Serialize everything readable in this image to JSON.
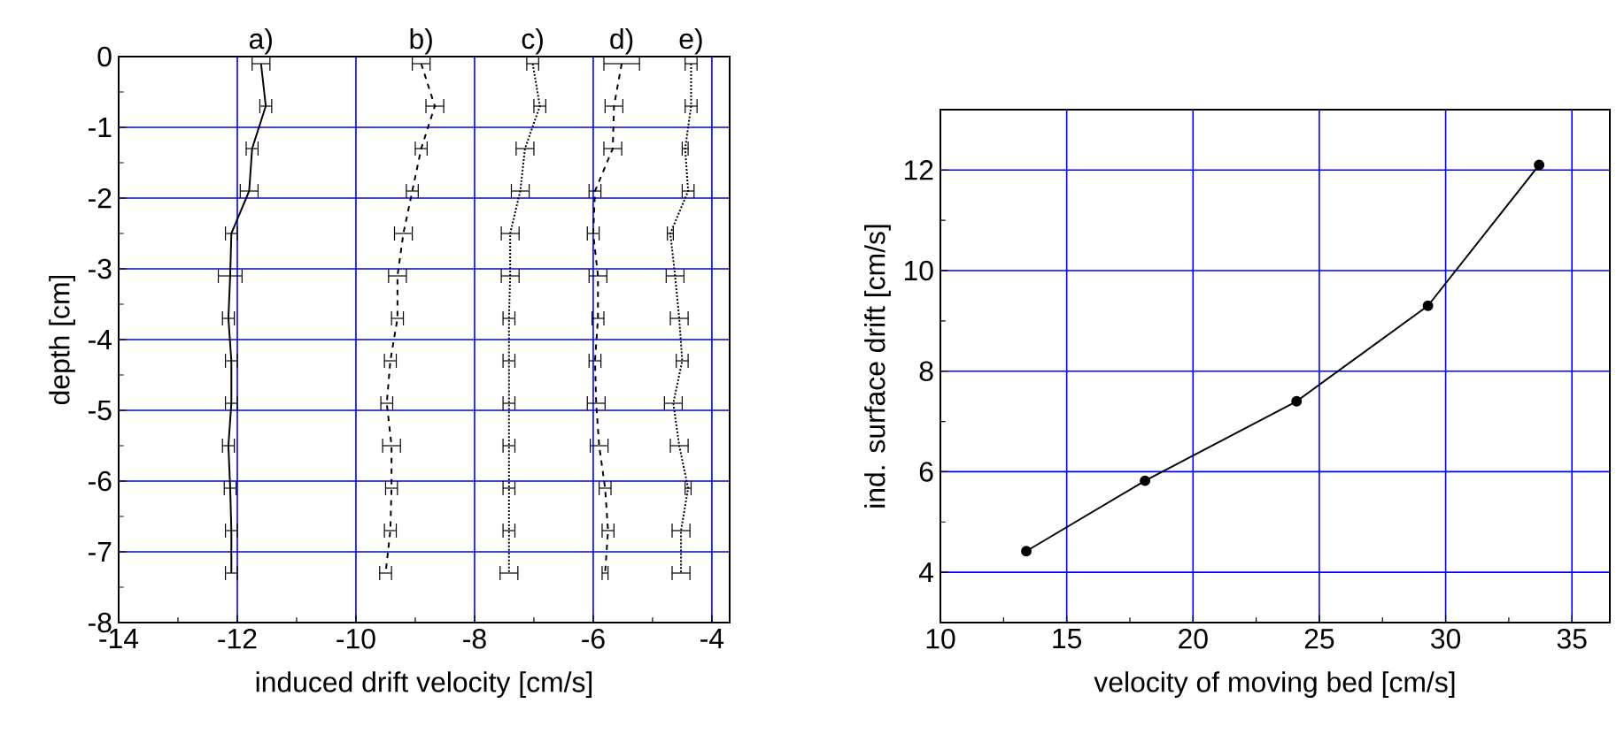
{
  "chart_data": [
    {
      "type": "line",
      "xlabel": "induced drift velocity [cm/s]",
      "ylabel": "depth [cm]",
      "xlim": [
        -14,
        -3.7
      ],
      "ylim": [
        -8,
        0
      ],
      "xticks": [
        -14,
        -12,
        -10,
        -8,
        -6,
        -4
      ],
      "yticks": [
        -8,
        -7,
        -6,
        -5,
        -4,
        -3,
        -2,
        -1,
        0
      ],
      "grid": true,
      "color": "#000000",
      "series": [
        {
          "name": "a)",
          "line_style": "solid",
          "x": [
            -11.6,
            -11.52,
            -11.75,
            -11.8,
            -12.1,
            -12.12,
            -12.15,
            -12.1,
            -12.1,
            -12.15,
            -12.12,
            -12.1,
            -12.1
          ],
          "values": [
            -0.1,
            -0.7,
            -1.3,
            -1.9,
            -2.5,
            -3.1,
            -3.7,
            -4.3,
            -4.9,
            -5.5,
            -6.1,
            -6.7,
            -7.3
          ],
          "xerrors": [
            0.15,
            0.1,
            0.1,
            0.15,
            0.1,
            0.2,
            0.1,
            0.1,
            0.1,
            0.1,
            0.1,
            0.1,
            0.1
          ]
        },
        {
          "name": "b)",
          "line_style": "dashed",
          "x": [
            -8.9,
            -8.67,
            -8.9,
            -9.05,
            -9.2,
            -9.3,
            -9.3,
            -9.42,
            -9.48,
            -9.4,
            -9.4,
            -9.42,
            -9.5
          ],
          "values": [
            -0.1,
            -0.7,
            -1.3,
            -1.9,
            -2.5,
            -3.1,
            -3.7,
            -4.3,
            -4.9,
            -5.5,
            -6.1,
            -6.7,
            -7.3
          ],
          "xerrors": [
            0.15,
            0.15,
            0.1,
            0.1,
            0.15,
            0.15,
            0.1,
            0.1,
            0.1,
            0.15,
            0.1,
            0.1,
            0.1
          ]
        },
        {
          "name": "c)",
          "line_style": "dotted",
          "x": [
            -7.02,
            -6.9,
            -7.15,
            -7.23,
            -7.4,
            -7.4,
            -7.42,
            -7.42,
            -7.42,
            -7.42,
            -7.42,
            -7.42,
            -7.42
          ],
          "values": [
            -0.1,
            -0.7,
            -1.3,
            -1.9,
            -2.5,
            -3.1,
            -3.7,
            -4.3,
            -4.9,
            -5.5,
            -6.1,
            -6.7,
            -7.3
          ],
          "xerrors": [
            0.1,
            0.1,
            0.15,
            0.15,
            0.15,
            0.15,
            0.1,
            0.1,
            0.1,
            0.1,
            0.1,
            0.1,
            0.15
          ]
        },
        {
          "name": "d)",
          "line_style": "dashed",
          "x": [
            -5.52,
            -5.65,
            -5.67,
            -5.97,
            -6.0,
            -5.92,
            -5.92,
            -5.97,
            -5.95,
            -5.9,
            -5.8,
            -5.75,
            -5.8
          ],
          "values": [
            -0.1,
            -0.7,
            -1.3,
            -1.9,
            -2.5,
            -3.1,
            -3.7,
            -4.3,
            -4.9,
            -5.5,
            -6.1,
            -6.7,
            -7.3
          ],
          "xerrors": [
            0.3,
            0.15,
            0.15,
            0.1,
            0.1,
            0.15,
            0.1,
            0.1,
            0.15,
            0.15,
            0.1,
            0.1,
            0.05
          ]
        },
        {
          "name": "e)",
          "line_style": "dotted",
          "x": [
            -4.35,
            -4.35,
            -4.45,
            -4.4,
            -4.7,
            -4.62,
            -4.55,
            -4.5,
            -4.65,
            -4.55,
            -4.4,
            -4.52,
            -4.52
          ],
          "values": [
            -0.1,
            -0.7,
            -1.3,
            -1.9,
            -2.5,
            -3.1,
            -3.7,
            -4.3,
            -4.9,
            -5.5,
            -6.1,
            -6.7,
            -7.3
          ],
          "xerrors": [
            0.1,
            0.1,
            0.05,
            0.1,
            0.05,
            0.15,
            0.15,
            0.1,
            0.15,
            0.15,
            0.05,
            0.15,
            0.15
          ]
        }
      ]
    },
    {
      "type": "line",
      "xlabel": "velocity of moving bed [cm/s]",
      "ylabel": "ind. surface drift [cm/s]",
      "xlim": [
        10,
        36.5
      ],
      "ylim": [
        3,
        13.2
      ],
      "xticks": [
        10,
        15,
        20,
        25,
        30,
        35
      ],
      "yticks": [
        4,
        6,
        8,
        10,
        12
      ],
      "grid": true,
      "marker": "circle",
      "color": "#000000",
      "x": [
        13.4,
        18.1,
        24.1,
        29.3,
        33.7
      ],
      "values": [
        4.42,
        5.82,
        7.4,
        9.3,
        12.1
      ]
    }
  ]
}
